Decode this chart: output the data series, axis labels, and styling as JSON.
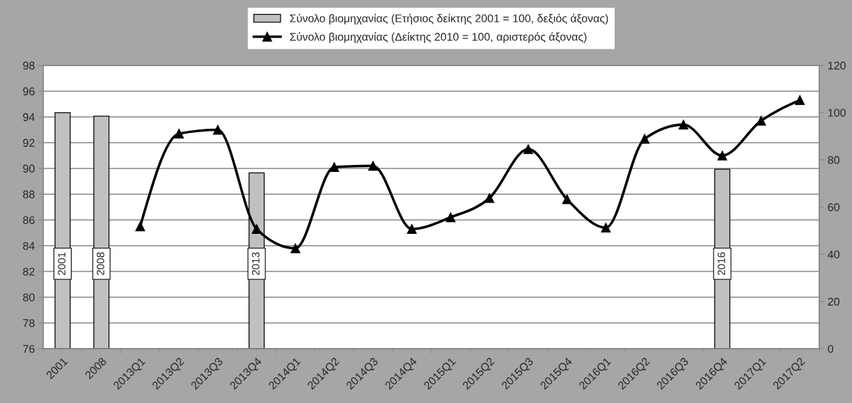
{
  "chart_data": {
    "type": "bar",
    "categories": [
      "2001",
      "2008",
      "2013Q1",
      "2013Q2",
      "2013Q3",
      "2013Q4",
      "2014Q1",
      "2014Q2",
      "2014Q3",
      "2014Q4",
      "2015Q1",
      "2015Q2",
      "2015Q3",
      "2015Q4",
      "2016Q1",
      "2016Q2",
      "2016Q3",
      "2016Q4",
      "2017Q1",
      "2017Q2"
    ],
    "series": [
      {
        "name": "Σύνολο βιομηχανίας (Ετήσιος δείκτης 2001 = 100, δεξιός άξονας)",
        "axis": "y2",
        "color": "#c0c0c0",
        "values": [
          100,
          98.5,
          null,
          null,
          null,
          74.5,
          null,
          null,
          null,
          null,
          null,
          null,
          null,
          null,
          null,
          null,
          null,
          76,
          null,
          null
        ]
      },
      {
        "name": "Σύνολο βιομηχανίας (Δείκτης 2010 = 100, αριστερός άξονας)",
        "type": "line",
        "axis": "y",
        "color": "#000000",
        "marker": "triangle",
        "line_style": "solid",
        "values": [
          null,
          null,
          85.5,
          92.7,
          93.0,
          85.3,
          83.8,
          90.1,
          90.2,
          85.3,
          86.2,
          87.7,
          91.5,
          87.6,
          85.4,
          92.3,
          93.4,
          91.0,
          93.7,
          95.3
        ]
      }
    ],
    "annotations": [
      "2001",
      "2008",
      "2013",
      "2016"
    ],
    "ylim": [
      76,
      98
    ],
    "yticks": [
      76,
      78,
      80,
      82,
      84,
      86,
      88,
      90,
      92,
      94,
      96,
      98
    ],
    "y2lim": [
      0,
      120
    ],
    "y2ticks": [
      0,
      20,
      40,
      60,
      80,
      100,
      120
    ],
    "grid": "y",
    "legend": "top"
  }
}
